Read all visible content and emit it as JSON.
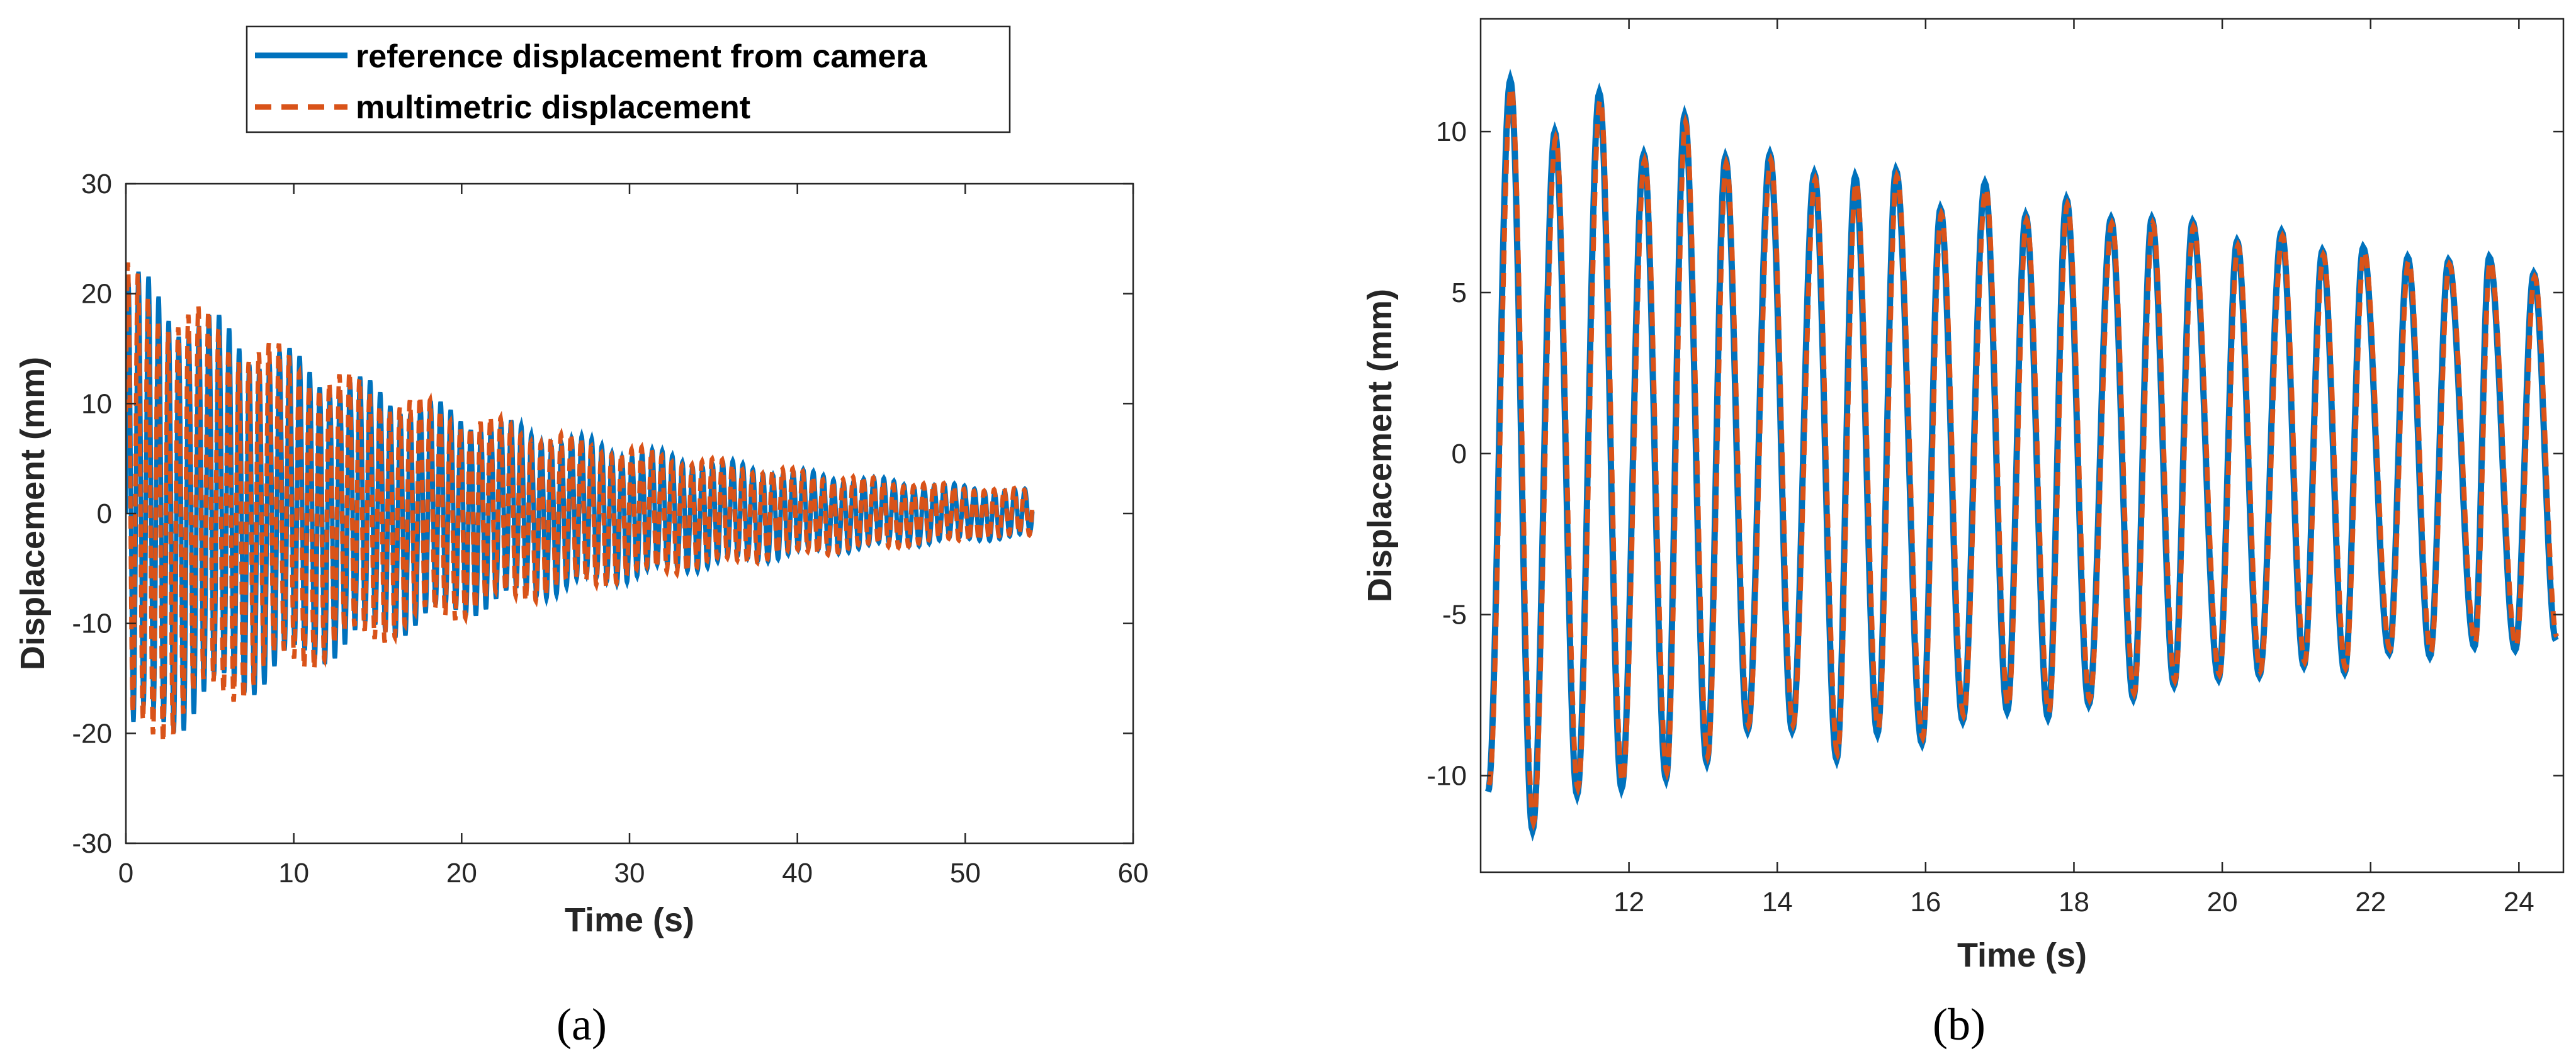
{
  "colors": {
    "reference": "#0072BD",
    "multimetric": "#D95319",
    "axis": "#262626"
  },
  "legend": {
    "placement": "top",
    "entries": [
      "reference displacement from camera",
      "multimetric displacement"
    ]
  },
  "captions": {
    "a": "(a)",
    "b": "(b)"
  },
  "chart_data": [
    {
      "id": "a",
      "type": "line",
      "xlabel": "Time (s)",
      "ylabel": "Displacement (mm)",
      "xlim": [
        0,
        60
      ],
      "ylim": [
        -30,
        30
      ],
      "xticks": [
        0,
        10,
        20,
        30,
        40,
        50,
        60
      ],
      "yticks": [
        -30,
        -20,
        -10,
        0,
        10,
        20,
        30
      ],
      "grid": false,
      "signal": {
        "t_start": 0,
        "t_end": 54,
        "peak_amplitude": 23,
        "final_amplitude": 2.2,
        "period": 0.6
      },
      "series": [
        {
          "name": "reference displacement from camera",
          "style": "solid"
        },
        {
          "name": "multimetric displacement",
          "style": "dashed"
        }
      ]
    },
    {
      "id": "b",
      "type": "line",
      "xlabel": "Time (s)",
      "ylabel": "Displacement (mm)",
      "xlim": [
        10,
        24.6
      ],
      "ylim": [
        -13,
        13.5
      ],
      "xticks": [
        12,
        14,
        16,
        18,
        20,
        22,
        24
      ],
      "yticks": [
        -10,
        -5,
        0,
        5,
        10
      ],
      "grid": false,
      "peaks_t": [
        10.4,
        11.0,
        11.6,
        12.2,
        12.75,
        13.3,
        13.9,
        14.5,
        15.05,
        15.6,
        16.2,
        16.8,
        17.35,
        17.9,
        18.5,
        19.05,
        19.6,
        20.2,
        20.8,
        21.35,
        21.9,
        22.5,
        23.05,
        23.6,
        24.2
      ],
      "peaks_y": [
        11.6,
        10.0,
        11.2,
        9.3,
        10.5,
        9.2,
        9.3,
        8.7,
        8.6,
        8.8,
        7.6,
        8.4,
        7.4,
        7.9,
        7.3,
        7.3,
        7.2,
        6.6,
        6.9,
        6.3,
        6.4,
        6.1,
        6.0,
        6.1,
        5.6
      ],
      "troughs_t": [
        10.1,
        10.7,
        11.3,
        11.9,
        12.5,
        13.05,
        13.6,
        14.2,
        14.8,
        15.35,
        15.95,
        16.5,
        17.1,
        17.65,
        18.2,
        18.8,
        19.35,
        19.95,
        20.5,
        21.1,
        21.65,
        22.25,
        22.8,
        23.4,
        23.95,
        24.5
      ],
      "troughs_y": [
        -10.5,
        -11.7,
        -10.6,
        -10.4,
        -10.1,
        -9.6,
        -8.6,
        -8.6,
        -9.5,
        -8.7,
        -9.0,
        -8.3,
        -8.0,
        -8.2,
        -7.8,
        -7.6,
        -7.2,
        -7.0,
        -6.9,
        -6.6,
        -6.8,
        -6.2,
        -6.3,
        -6.0,
        -6.1,
        -5.8
      ],
      "series": [
        {
          "name": "reference displacement from camera",
          "style": "solid"
        },
        {
          "name": "multimetric displacement",
          "style": "dashed"
        }
      ]
    }
  ]
}
